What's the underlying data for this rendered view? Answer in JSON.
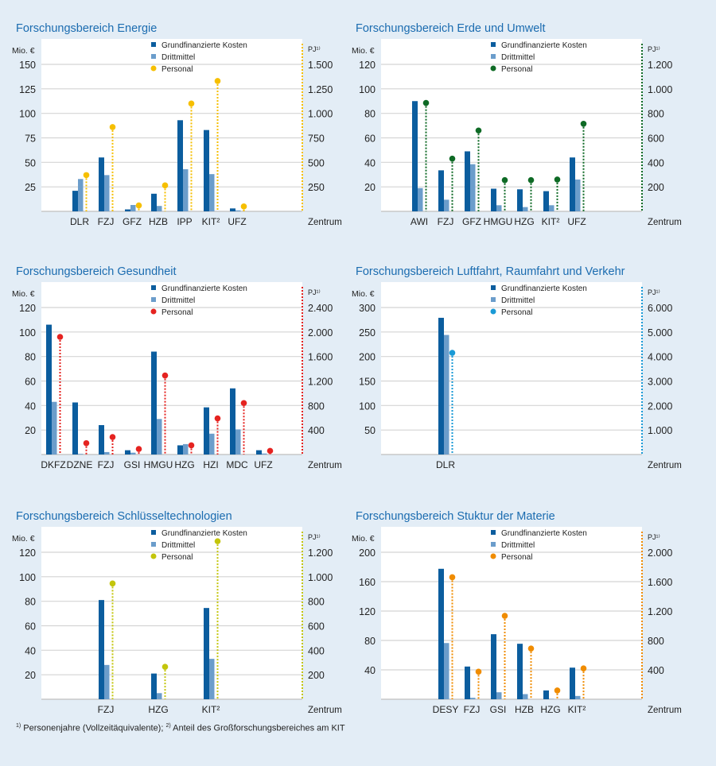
{
  "colors": {
    "grund": "#0b5d9e",
    "dritt": "#6b9dcb",
    "title": "#1b6cb0",
    "background": "#e3edf6"
  },
  "legend": {
    "grund": "Grundfinanzierte Kosten",
    "dritt": "Drittmittel",
    "personal": "Personal"
  },
  "axis_labels": {
    "left": "Mio. €",
    "right": "PJ¹⁾",
    "x": "Zentrum"
  },
  "footnote": {
    "n1": "1)",
    "t1": "Personenjahre (Vollzeitäquivalente);",
    "n2": "2)",
    "t2": "Anteil des Großforschungsbereiches am KIT"
  },
  "chart_data": [
    {
      "type": "bar",
      "title": "Forschungsbereich Energie",
      "personal_color": "#f6bf00",
      "ylim": [
        0,
        150
      ],
      "yticks": [
        "25",
        "50",
        "75",
        "100",
        "125",
        "150"
      ],
      "y2lim": [
        0,
        1500
      ],
      "y2ticks": [
        "250",
        "500",
        "750",
        "1.000",
        "1.250",
        "1.500"
      ],
      "categories": [
        "DLR",
        "FZJ",
        "GFZ",
        "HZB",
        "IPP",
        "KIT²",
        "UFZ"
      ],
      "series": [
        {
          "name": "Grundfinanzierte Kosten",
          "values": [
            21,
            55,
            2,
            18,
            93,
            83,
            3
          ]
        },
        {
          "name": "Drittmittel",
          "values": [
            33,
            37,
            6.5,
            5.5,
            43,
            38,
            1
          ]
        },
        {
          "name": "Personal",
          "axis": "right",
          "values": [
            370,
            860,
            60,
            265,
            1100,
            1330,
            50
          ]
        }
      ]
    },
    {
      "type": "bar",
      "title": "Forschungsbereich Erde und Umwelt",
      "personal_color": "#0e6a25",
      "ylim": [
        0,
        120
      ],
      "yticks": [
        "20",
        "40",
        "60",
        "80",
        "100",
        "120"
      ],
      "y2lim": [
        0,
        1200
      ],
      "y2ticks": [
        "200",
        "400",
        "600",
        "800",
        "1.000",
        "1.200"
      ],
      "categories": [
        "AWI",
        "FZJ",
        "GFZ",
        "HMGU",
        "HZG",
        "KIT²",
        "UFZ"
      ],
      "series": [
        {
          "name": "Grundfinanzierte Kosten",
          "values": [
            90,
            33.5,
            49,
            18.5,
            18,
            16.5,
            44
          ]
        },
        {
          "name": "Drittmittel",
          "values": [
            19,
            9.5,
            38.5,
            5,
            3.5,
            5,
            26
          ]
        },
        {
          "name": "Personal",
          "axis": "right",
          "values": [
            885,
            430,
            660,
            255,
            255,
            260,
            715
          ]
        }
      ]
    },
    {
      "type": "bar",
      "title": "Forschungsbereich Gesundheit",
      "personal_color": "#e52320",
      "ylim": [
        0,
        120
      ],
      "yticks": [
        "20",
        "40",
        "60",
        "80",
        "100",
        "120"
      ],
      "y2lim": [
        0,
        2400
      ],
      "y2ticks": [
        "400",
        "800",
        "1.200",
        "1.600",
        "2.000",
        "2.400"
      ],
      "categories": [
        "DKFZ",
        "DZNE",
        "FZJ",
        "GSI",
        "HMGU",
        "HZG",
        "HZI",
        "MDC",
        "UFZ"
      ],
      "series": [
        {
          "name": "Grundfinanzierte Kosten",
          "values": [
            106,
            42.5,
            24,
            3.5,
            84,
            7.5,
            38.5,
            54,
            3.5
          ]
        },
        {
          "name": "Drittmittel",
          "values": [
            43,
            0.5,
            2,
            1.5,
            29,
            8.5,
            17,
            20.5,
            0.8
          ]
        },
        {
          "name": "Personal",
          "axis": "right",
          "values": [
            1920,
            185,
            285,
            90,
            1290,
            150,
            590,
            840,
            60
          ]
        }
      ]
    },
    {
      "type": "bar",
      "title": "Forschungsbereich Luftfahrt, Raumfahrt und Verkehr",
      "personal_color": "#1a9ad6",
      "ylim": [
        0,
        300
      ],
      "yticks": [
        "50",
        "100",
        "150",
        "200",
        "250",
        "300"
      ],
      "y2lim": [
        0,
        6000
      ],
      "y2ticks": [
        "1.000",
        "2.000",
        "3.000",
        "4.000",
        "5.000",
        "6.000"
      ],
      "categories": [
        "DLR"
      ],
      "series": [
        {
          "name": "Grundfinanzierte Kosten",
          "values": [
            279
          ]
        },
        {
          "name": "Drittmittel",
          "values": [
            244
          ]
        },
        {
          "name": "Personal",
          "axis": "right",
          "values": [
            4150
          ]
        }
      ]
    },
    {
      "type": "bar",
      "title": "Forschungsbereich Schlüsseltechnologien",
      "personal_color": "#c3c50b",
      "ylim": [
        0,
        120
      ],
      "yticks": [
        "20",
        "40",
        "60",
        "80",
        "100",
        "120"
      ],
      "y2lim": [
        0,
        1200
      ],
      "y2ticks": [
        "200",
        "400",
        "600",
        "800",
        "1.000",
        "1.200"
      ],
      "categories": [
        "FZJ",
        "HZG",
        "KIT²"
      ],
      "series": [
        {
          "name": "Grundfinanzierte Kosten",
          "values": [
            81,
            21,
            74.5
          ]
        },
        {
          "name": "Drittmittel",
          "values": [
            28,
            5,
            33
          ]
        },
        {
          "name": "Personal",
          "axis": "right",
          "values": [
            945,
            265,
            1290
          ]
        }
      ]
    },
    {
      "type": "bar",
      "title": "Forschungsbereich Stuktur der Materie",
      "personal_color": "#f08c00",
      "ylim": [
        0,
        200
      ],
      "yticks": [
        "40",
        "80",
        "120",
        "160",
        "200"
      ],
      "y2lim": [
        0,
        2000
      ],
      "y2ticks": [
        "400",
        "800",
        "1.200",
        "1.600",
        "2.000"
      ],
      "categories": [
        "DESY",
        "FZJ",
        "GSI",
        "HZB",
        "HZG",
        "KIT²"
      ],
      "series": [
        {
          "name": "Grundfinanzierte Kosten",
          "values": [
            177.5,
            44.5,
            88.5,
            75.5,
            12,
            43
          ]
        },
        {
          "name": "Drittmittel",
          "values": [
            76.5,
            2,
            9.5,
            7,
            0.5,
            4.5
          ]
        },
        {
          "name": "Personal",
          "axis": "right",
          "values": [
            1660,
            375,
            1135,
            690,
            120,
            420
          ]
        }
      ]
    }
  ]
}
